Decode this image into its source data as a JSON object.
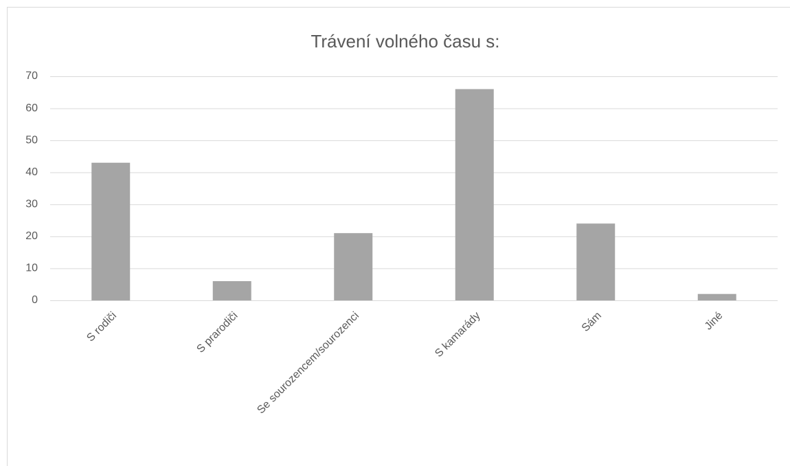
{
  "chart_data": {
    "type": "bar",
    "title": "Trávení volného času s:",
    "categories": [
      "S rodiči",
      "S prarodiči",
      "Se sourozencem/sourozenci",
      "S kamarády",
      "Sám",
      "Jiné"
    ],
    "values": [
      43,
      6,
      21,
      66,
      24,
      2
    ],
    "color": "#a5a5a5",
    "ylim": [
      0,
      70
    ],
    "yticks": [
      0,
      10,
      20,
      30,
      40,
      50,
      60,
      70
    ],
    "grid": true
  }
}
